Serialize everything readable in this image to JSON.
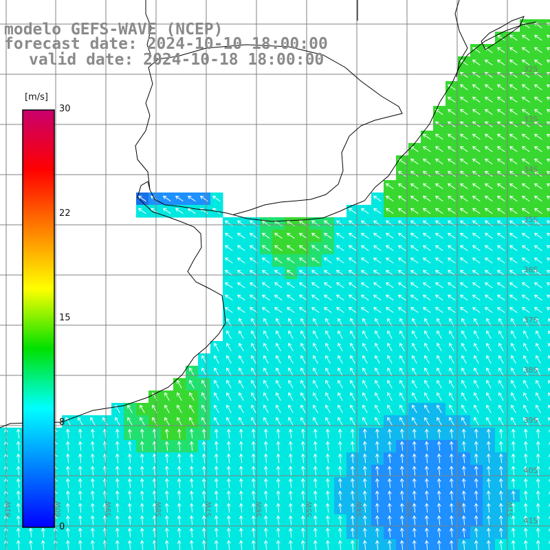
{
  "title": {
    "line1": "modelo GEFS-WAVE (NCEP)",
    "line2": "forecast date: 2024-10-10 18:00:00",
    "line3": "valid date: 2024-10-18 18:00:00"
  },
  "colorbar": {
    "unit": "[m/s]",
    "ticks": [
      "30",
      "22",
      "15",
      "8",
      "0"
    ],
    "colors": [
      "#c8006e",
      "#ff0000",
      "#ff8000",
      "#ffff00",
      "#00e000",
      "#00ffff",
      "#0080ff",
      "#0000ff"
    ]
  },
  "map": {
    "lat_labels": [
      "32S",
      "33S",
      "34S",
      "35S",
      "36S",
      "37S",
      "38S",
      "39S",
      "40S",
      "41S"
    ],
    "lon_labels": [
      "61W",
      "60W",
      "59W",
      "58W",
      "57W",
      "56W",
      "55W",
      "54W",
      "53W",
      "52W",
      "51W"
    ],
    "colors": {
      "land": "#ffffff",
      "grid": "#808080",
      "coast": "#000000",
      "arrow": "#ffffff",
      "calm": "#1e90ff",
      "moderate": "#00e8e0",
      "fresh": "#22e070",
      "strong": "#38d830"
    }
  }
}
